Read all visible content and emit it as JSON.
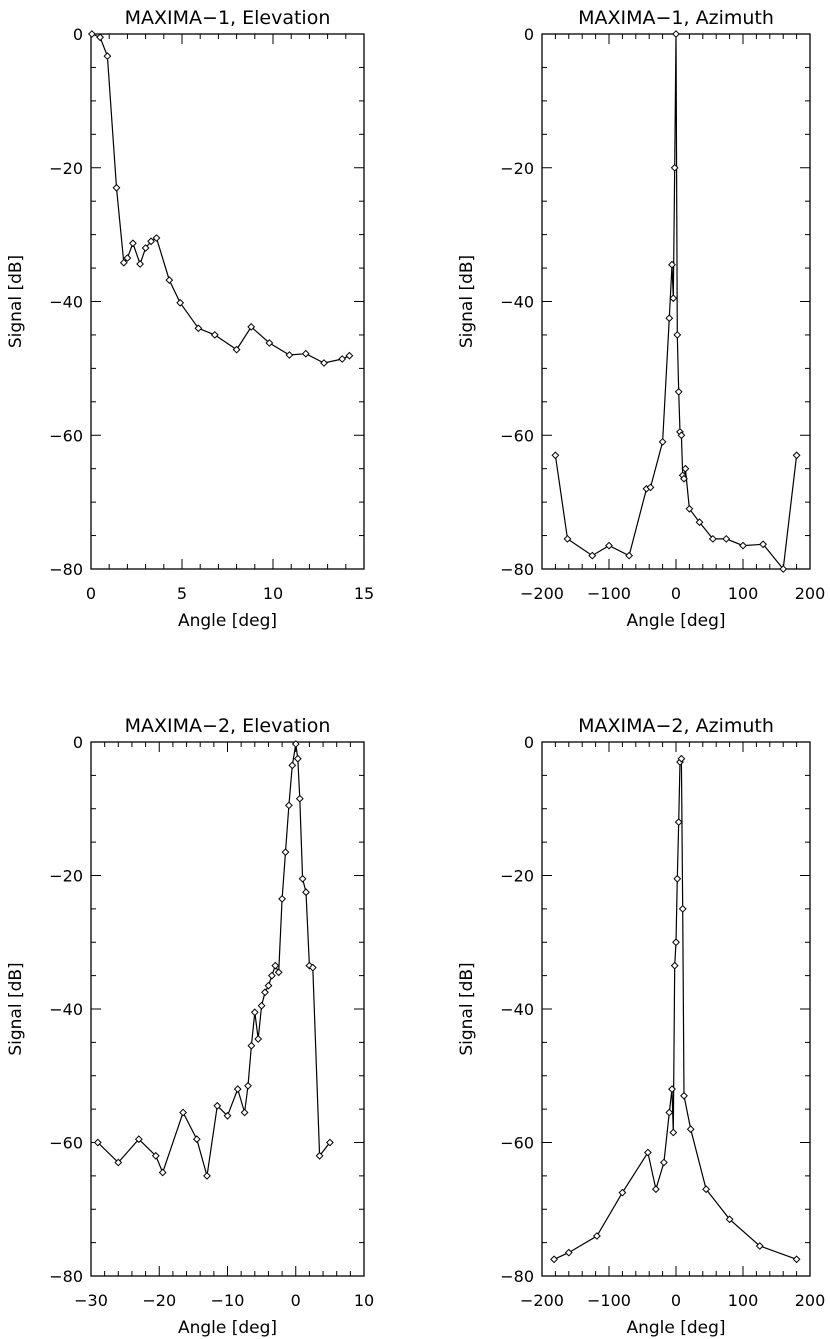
{
  "chart_data": [
    {
      "type": "line",
      "title": "MAXIMA−1, Elevation",
      "xlabel": "Angle [deg]",
      "ylabel": "Signal [dB]",
      "xlim": [
        0,
        15
      ],
      "ylim": [
        -80,
        0
      ],
      "xticks": [
        "0",
        "5",
        "10",
        "15"
      ],
      "yticks": [
        "0",
        "−20",
        "−40",
        "−60",
        "−80"
      ],
      "grid": false,
      "series": [
        {
          "name": "MAXIMA-1 Elevation",
          "x": [
            0.05,
            0.5,
            0.9,
            1.4,
            1.8,
            2.0,
            2.3,
            2.7,
            3.0,
            3.3,
            3.6,
            4.3,
            4.9,
            5.9,
            6.8,
            8.0,
            8.8,
            9.8,
            10.9,
            11.8,
            12.8,
            13.8,
            14.2
          ],
          "values": [
            0,
            -0.5,
            -3.3,
            -23,
            -34.2,
            -33.5,
            -31.3,
            -34.4,
            -32,
            -31,
            -30.5,
            -36.8,
            -40.2,
            -44,
            -45,
            -47.2,
            -43.8,
            -46.2,
            -48,
            -47.8,
            -49.2,
            -48.6,
            -48.1
          ]
        }
      ]
    },
    {
      "type": "line",
      "title": "MAXIMA−1, Azimuth",
      "xlabel": "Angle [deg]",
      "ylabel": "Signal [dB]",
      "xlim": [
        -200,
        200
      ],
      "ylim": [
        -80,
        0
      ],
      "xticks": [
        "−200",
        "−100",
        "0",
        "100",
        "200"
      ],
      "yticks": [
        "0",
        "−20",
        "−40",
        "−60",
        "−80"
      ],
      "grid": false,
      "series": [
        {
          "name": "MAXIMA-1 Azimuth",
          "x": [
            -180,
            -162,
            -125,
            -100,
            -70,
            -44,
            -38,
            -20,
            -10,
            -6,
            -4,
            -2,
            0,
            2,
            4,
            6,
            8,
            10,
            12,
            14,
            20,
            35,
            55,
            75,
            100,
            130,
            160,
            180
          ],
          "values": [
            -63,
            -75.5,
            -78,
            -76.5,
            -78,
            -68,
            -67.8,
            -61,
            -42.5,
            -34.5,
            -39.5,
            -20,
            0,
            -45,
            -53.5,
            -59.5,
            -60,
            -66,
            -66.5,
            -65,
            -71,
            -73,
            -75.5,
            -75.5,
            -76.5,
            -76.3,
            -80,
            -63
          ]
        }
      ]
    },
    {
      "type": "line",
      "title": "MAXIMA−2, Elevation",
      "xlabel": "Angle [deg]",
      "ylabel": "Signal [dB]",
      "xlim": [
        -30,
        10
      ],
      "ylim": [
        -80,
        0
      ],
      "xticks": [
        "−30",
        "−20",
        "−10",
        "0",
        "10"
      ],
      "yticks": [
        "0",
        "−20",
        "−40",
        "−60",
        "−80"
      ],
      "grid": false,
      "series": [
        {
          "name": "MAXIMA-2 Elevation",
          "x": [
            -29,
            -26,
            -23,
            -20.5,
            -19.5,
            -16.5,
            -14.5,
            -13,
            -11.5,
            -10,
            -8.5,
            -7.5,
            -7,
            -6.5,
            -6,
            -5.5,
            -5,
            -4.5,
            -4,
            -3.5,
            -3,
            -2.5,
            -2,
            -1.5,
            -1,
            -0.5,
            0,
            0.3,
            0.6,
            1,
            1.5,
            2,
            2.5,
            3.5,
            5
          ],
          "values": [
            -60,
            -63,
            -59.5,
            -62,
            -64.5,
            -55.5,
            -59.5,
            -65,
            -54.5,
            -56,
            -52,
            -55.5,
            -51.5,
            -45.5,
            -40.5,
            -44.5,
            -39.5,
            -37.5,
            -36.5,
            -35,
            -33.5,
            -34.5,
            -23.5,
            -16.5,
            -9.5,
            -3.5,
            -0.3,
            -2.5,
            -8.5,
            -20.5,
            -22.5,
            -33.5,
            -33.8,
            -62,
            -60
          ]
        }
      ]
    },
    {
      "type": "line",
      "title": "MAXIMA−2, Azimuth",
      "xlabel": "Angle [deg]",
      "ylabel": "Signal [dB]",
      "xlim": [
        -200,
        200
      ],
      "ylim": [
        -80,
        0
      ],
      "xticks": [
        "−200",
        "−100",
        "0",
        "100",
        "200"
      ],
      "yticks": [
        "0",
        "−20",
        "−40",
        "−60",
        "−80"
      ],
      "grid": false,
      "series": [
        {
          "name": "MAXIMA-2 Azimuth",
          "x": [
            -182,
            -160,
            -118,
            -80,
            -42,
            -30,
            -18,
            -10,
            -6,
            -4,
            -2,
            0,
            2,
            4,
            6,
            8,
            10,
            12,
            22,
            45,
            80,
            125,
            180
          ],
          "values": [
            -77.5,
            -76.5,
            -74,
            -67.5,
            -61.5,
            -67,
            -63,
            -55.5,
            -52,
            -58.5,
            -33.5,
            -30,
            -20.5,
            -12,
            -3,
            -2.5,
            -25,
            -53,
            -58,
            -67,
            -71.5,
            -75.5,
            -77.5
          ]
        }
      ]
    }
  ]
}
